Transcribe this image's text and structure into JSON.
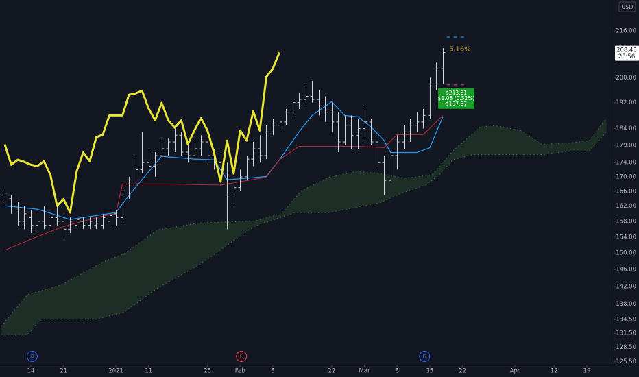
{
  "chart_data": {
    "type": "ohlc",
    "currency": "USD",
    "color": "#d1d4dc",
    "log_scale": true,
    "grid": false,
    "ylim": [
      124.9,
      227.2
    ],
    "yticks": [
      {
        "value": 216,
        "label": "216.00"
      },
      {
        "value": 200,
        "label": "200.00"
      },
      {
        "value": 192,
        "label": "192.00"
      },
      {
        "value": 184,
        "label": "184.00"
      },
      {
        "value": 179,
        "label": "179.00"
      },
      {
        "value": 174,
        "label": "174.00"
      },
      {
        "value": 170,
        "label": "170.00"
      },
      {
        "value": 166,
        "label": "166.00"
      },
      {
        "value": 162,
        "label": "162.00"
      },
      {
        "value": 158,
        "label": "158.00"
      },
      {
        "value": 154,
        "label": "154.00"
      },
      {
        "value": 150,
        "label": "150.00"
      },
      {
        "value": 146,
        "label": "146.00"
      },
      {
        "value": 142,
        "label": "142.00"
      },
      {
        "value": 138,
        "label": "138.00"
      },
      {
        "value": 134.5,
        "label": "134.50"
      },
      {
        "value": 131.5,
        "label": "131.50"
      },
      {
        "value": 128.5,
        "label": "128.50"
      },
      {
        "value": 125.5,
        "label": "125.50"
      }
    ],
    "xlim": [
      -4.72,
      89.1
    ],
    "xticks": [
      {
        "value": 0,
        "label": "14"
      },
      {
        "value": 5,
        "label": "21"
      },
      {
        "value": 13,
        "label": "2021"
      },
      {
        "value": 18,
        "label": "11"
      },
      {
        "value": 27,
        "label": "25"
      },
      {
        "value": 32,
        "label": "Feb"
      },
      {
        "value": 37,
        "label": "8"
      },
      {
        "value": 46,
        "label": "22"
      },
      {
        "value": 51,
        "label": "Mar"
      },
      {
        "value": 56,
        "label": "8"
      },
      {
        "value": 61,
        "label": "15"
      },
      {
        "value": 66,
        "label": "22"
      },
      {
        "value": 74,
        "label": "Apr"
      },
      {
        "value": 80,
        "label": "12"
      },
      {
        "value": 85,
        "label": "19"
      }
    ],
    "x": [
      -4,
      -3,
      -2,
      -1,
      0,
      1,
      2,
      3,
      4,
      5,
      6,
      7,
      8,
      9,
      10,
      11,
      12,
      13,
      14,
      15,
      16,
      17,
      18,
      19,
      20,
      21,
      22,
      23,
      24,
      25,
      26,
      27,
      28,
      29,
      30,
      31,
      32,
      33,
      34,
      35,
      36,
      37,
      38,
      39,
      40,
      41,
      42,
      43,
      44,
      45,
      46,
      47,
      48,
      49,
      50,
      51,
      52,
      53,
      54,
      55,
      56,
      57,
      58,
      59,
      60,
      61,
      62,
      63
    ],
    "open": [
      165,
      164,
      161,
      158,
      159,
      157,
      158,
      157,
      159,
      158,
      156,
      157,
      158,
      157,
      157,
      157,
      158,
      160,
      159,
      165,
      168,
      172,
      174,
      173,
      176,
      178,
      180,
      182,
      177,
      176,
      178,
      180,
      176,
      174,
      171,
      165,
      167,
      170,
      175,
      178,
      176,
      183,
      185,
      186,
      189,
      192,
      193,
      194,
      193,
      191,
      189,
      186,
      180,
      185,
      182,
      184,
      186,
      180,
      174,
      169,
      176,
      180,
      183,
      185,
      186,
      188,
      198,
      203
    ],
    "high": [
      167,
      165,
      163,
      162,
      161,
      160,
      162,
      160,
      162,
      160,
      159,
      159,
      159,
      159,
      159,
      160,
      160,
      161,
      166,
      170,
      176,
      183,
      178,
      177,
      181,
      181,
      184,
      183,
      179,
      180,
      182,
      182,
      178,
      177,
      174,
      169,
      172,
      176,
      180,
      182,
      185,
      187,
      188,
      190,
      193,
      195,
      197,
      199,
      196,
      194,
      192,
      189,
      188,
      188,
      187,
      190,
      187,
      182,
      176,
      178,
      182,
      185,
      187,
      189,
      190,
      200,
      205,
      210
    ],
    "low": [
      163,
      160,
      157,
      156,
      155,
      155,
      156,
      155,
      157,
      153,
      155,
      156,
      156,
      156,
      156,
      156,
      157,
      157,
      158,
      164,
      167,
      171,
      171,
      170,
      174,
      176,
      177,
      176,
      174,
      175,
      176,
      174,
      172,
      168,
      156,
      162,
      166,
      169,
      173,
      174,
      175,
      182,
      184,
      185,
      187,
      190,
      191,
      192,
      188,
      186,
      183,
      177,
      179,
      178,
      178,
      181,
      179,
      172,
      165,
      168,
      172,
      178,
      180,
      183,
      184,
      187,
      196,
      198
    ],
    "close": [
      165.5,
      162,
      158,
      160,
      157,
      158,
      157,
      159,
      158,
      156,
      158,
      158.5,
      157,
      158,
      157.5,
      159,
      159.5,
      159,
      165,
      168,
      172,
      174,
      173,
      176,
      178,
      180,
      182,
      177,
      176,
      178,
      180,
      176,
      174,
      171,
      165,
      167,
      170,
      175,
      178,
      176,
      183,
      185,
      186,
      189,
      192,
      193,
      194,
      193,
      191,
      189,
      186,
      180,
      185,
      182,
      184,
      186,
      180,
      174,
      169,
      176,
      180,
      183,
      185,
      186,
      188,
      198,
      203,
      208.43
    ],
    "last_label": {
      "value": 208.43,
      "label": "208.43"
    },
    "countdown": "28:56",
    "lines": [
      {
        "color": "#e8e534",
        "width": 3,
        "x": [
          -4,
          -3,
          -2,
          -1,
          0,
          1,
          2,
          3,
          4,
          5,
          6,
          7,
          8,
          9,
          10,
          11,
          12,
          13,
          14,
          15,
          16,
          17,
          18,
          19,
          20,
          21,
          22,
          23,
          24,
          25,
          26,
          27,
          28,
          29,
          30,
          31,
          32,
          33,
          34,
          35,
          36,
          37,
          38
        ],
        "values": [
          179.3,
          173.4,
          174.8,
          174.2,
          173.4,
          173.0,
          174.4,
          170.5,
          162.1,
          163.9,
          160.3,
          171.5,
          176.9,
          174.4,
          181.4,
          182.2,
          188.0,
          188.0,
          188.0,
          194.5,
          194.9,
          195.8,
          190.2,
          186.5,
          191.9,
          186.5,
          184.3,
          186.5,
          179.3,
          183.4,
          187.2,
          183.4,
          176.9,
          168.6,
          180.4,
          170.9,
          183.4,
          180.4,
          189.3,
          183.4,
          200.3,
          203.0,
          208.5
        ]
      },
      {
        "color": "#2196f3",
        "width": 1.3,
        "x": [
          -4,
          1,
          6,
          13,
          15,
          17,
          20,
          25,
          28,
          30,
          33,
          36,
          38,
          41,
          43,
          46,
          48,
          50,
          52,
          54,
          55,
          57,
          59,
          61,
          63
        ],
        "values": [
          162.1,
          161.2,
          158.5,
          160.3,
          164.9,
          169.2,
          175.8,
          175.0,
          174.8,
          169.2,
          169.6,
          170.1,
          174.8,
          183.0,
          188.0,
          192.3,
          188.0,
          187.6,
          184.5,
          180.4,
          176.9,
          176.9,
          176.9,
          178.3,
          187.6
        ]
      },
      {
        "color": "#b22833",
        "width": 1.1,
        "x": [
          -4,
          1,
          5,
          11,
          13,
          14,
          21,
          29,
          36,
          38,
          41,
          50,
          54,
          56,
          60,
          63
        ],
        "values": [
          150.7,
          154.1,
          156.7,
          159.4,
          160.0,
          168.0,
          168.0,
          167.7,
          169.9,
          174.8,
          178.7,
          178.7,
          178.3,
          182.2,
          182.2,
          188.0
        ]
      }
    ],
    "cloud": {
      "color": "#1e3327",
      "edge": "#4b7a55",
      "upper": {
        "x": [
          -4.5,
          -0.5,
          4.7,
          11,
          14.2,
          19.4,
          25.7,
          34.1,
          38.3,
          41.4,
          45.6,
          49.8,
          53.5,
          57.1,
          61.3,
          64.5,
          68.7,
          70.8,
          75,
          78.1,
          82.3,
          85.4,
          88
        ],
        "values": [
          133.1,
          140.1,
          142.4,
          147.8,
          149.8,
          155.8,
          157.6,
          158.1,
          160.0,
          166.2,
          169.9,
          171.5,
          170.9,
          169.6,
          170.5,
          177.3,
          184.5,
          184.9,
          183.4,
          179.3,
          179.7,
          180.4,
          187.2
        ]
      },
      "lower": {
        "x": [
          -4.5,
          -0.5,
          1.6,
          5.8,
          10,
          14.2,
          19.4,
          25.7,
          34.1,
          40.4,
          45.6,
          49.8,
          53.5,
          57.1,
          60.3,
          62.4,
          64.5,
          67.6,
          70.8,
          78.1,
          82.3,
          85.4,
          88
        ],
        "values": [
          131.2,
          131.2,
          134.6,
          134.6,
          134.6,
          136.1,
          141.6,
          147.1,
          156.7,
          160.3,
          160.3,
          161.7,
          163.0,
          165.8,
          167.6,
          170.5,
          174.8,
          176.3,
          176.3,
          176.3,
          177.3,
          177.3,
          183.0
        ]
      }
    },
    "projection": {
      "x": [
        63.6,
        66.6
      ],
      "pct": "5.16%",
      "upper": {
        "value": 213.81,
        "label": "$213.81"
      },
      "change": "$1.08 (0.52%)",
      "lower": {
        "value": 197.67,
        "label": "$197.67"
      }
    },
    "events": [
      {
        "x": 0.2,
        "label": "D",
        "color": "#2962ff"
      },
      {
        "x": 32.2,
        "label": "E",
        "color": "#f23645"
      },
      {
        "x": 60.2,
        "label": "D",
        "color": "#2962ff"
      }
    ]
  }
}
